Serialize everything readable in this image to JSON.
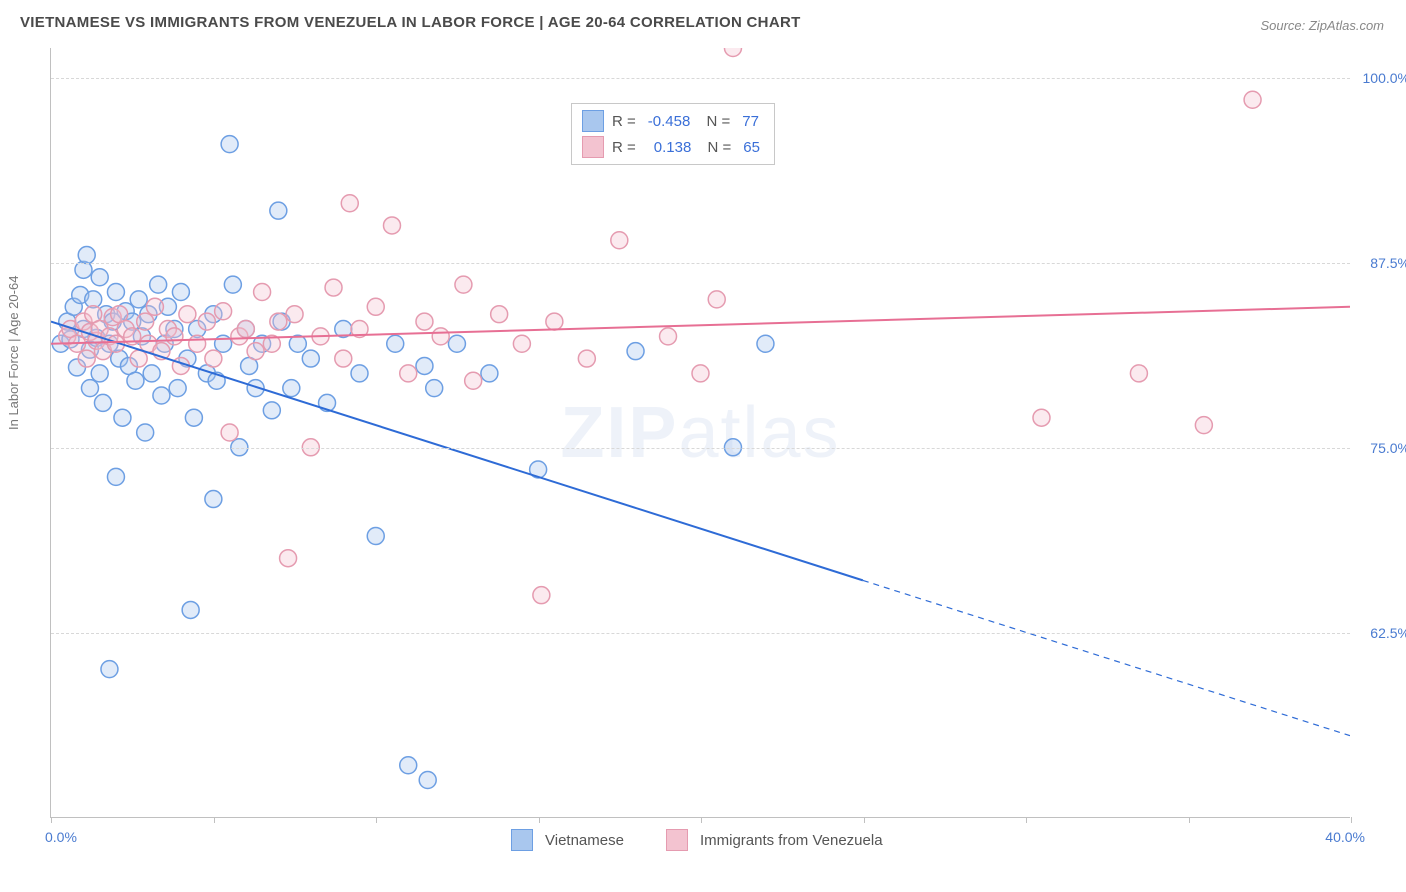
{
  "title": "VIETNAMESE VS IMMIGRANTS FROM VENEZUELA IN LABOR FORCE | AGE 20-64 CORRELATION CHART",
  "source": "Source: ZipAtlas.com",
  "y_label": "In Labor Force | Age 20-64",
  "watermark_bold": "ZIP",
  "watermark_rest": "atlas",
  "chart": {
    "type": "scatter",
    "xlim": [
      0,
      40
    ],
    "ylim": [
      50,
      102
    ],
    "x_ticks": [
      0,
      5,
      10,
      15,
      20,
      25,
      30,
      35,
      40
    ],
    "x_tick_labels": {
      "0": "0.0%",
      "40": "40.0%"
    },
    "y_ticks": [
      62.5,
      75.0,
      87.5,
      100.0
    ],
    "y_tick_labels": [
      "62.5%",
      "75.0%",
      "87.5%",
      "100.0%"
    ],
    "grid_color": "#d8d8d8",
    "background_color": "#ffffff",
    "axis_color": "#c0c0c0",
    "tick_label_color": "#4a7bd0",
    "tick_label_fontsize": 14,
    "marker_radius": 8.5,
    "marker_fill_opacity": 0.35,
    "marker_stroke_width": 1.5,
    "line_width": 2,
    "series": [
      {
        "name": "Vietnamese",
        "color_stroke": "#6d9fe3",
        "color_fill": "#a9c7ee",
        "line_color": "#2e6bd6",
        "R": "-0.458",
        "N": "77",
        "trend": {
          "x1": 0,
          "y1": 83.5,
          "x2": 40,
          "y2": 55.5,
          "solid_until_x": 25
        },
        "points": [
          [
            0.3,
            82.0
          ],
          [
            0.5,
            83.5
          ],
          [
            0.6,
            82.3
          ],
          [
            0.7,
            84.5
          ],
          [
            0.8,
            80.4
          ],
          [
            0.9,
            85.3
          ],
          [
            1.0,
            87.0
          ],
          [
            1.0,
            83.0
          ],
          [
            1.1,
            88.0
          ],
          [
            1.2,
            81.6
          ],
          [
            1.2,
            79.0
          ],
          [
            1.3,
            85.0
          ],
          [
            1.4,
            82.4
          ],
          [
            1.5,
            80.0
          ],
          [
            1.5,
            86.5
          ],
          [
            1.6,
            78.0
          ],
          [
            1.7,
            84.0
          ],
          [
            1.8,
            82.0
          ],
          [
            1.8,
            60.0
          ],
          [
            1.9,
            83.5
          ],
          [
            2.0,
            85.5
          ],
          [
            2.0,
            73.0
          ],
          [
            2.1,
            81.0
          ],
          [
            2.2,
            77.0
          ],
          [
            2.3,
            84.2
          ],
          [
            2.4,
            80.5
          ],
          [
            2.5,
            83.5
          ],
          [
            2.6,
            79.5
          ],
          [
            2.7,
            85.0
          ],
          [
            2.8,
            82.5
          ],
          [
            2.9,
            76.0
          ],
          [
            3.0,
            84.0
          ],
          [
            3.1,
            80.0
          ],
          [
            3.3,
            86.0
          ],
          [
            3.4,
            78.5
          ],
          [
            3.5,
            82.0
          ],
          [
            3.6,
            84.5
          ],
          [
            3.8,
            83.0
          ],
          [
            3.9,
            79.0
          ],
          [
            4.0,
            85.5
          ],
          [
            4.2,
            81.0
          ],
          [
            4.3,
            64.0
          ],
          [
            4.4,
            77.0
          ],
          [
            4.5,
            83.0
          ],
          [
            4.8,
            80.0
          ],
          [
            5.0,
            71.5
          ],
          [
            5.0,
            84.0
          ],
          [
            5.1,
            79.5
          ],
          [
            5.3,
            82.0
          ],
          [
            5.5,
            95.5
          ],
          [
            5.6,
            86.0
          ],
          [
            5.8,
            75.0
          ],
          [
            6.0,
            83.0
          ],
          [
            6.1,
            80.5
          ],
          [
            6.3,
            79.0
          ],
          [
            6.5,
            82.0
          ],
          [
            6.8,
            77.5
          ],
          [
            7.0,
            91.0
          ],
          [
            7.1,
            83.5
          ],
          [
            7.4,
            79.0
          ],
          [
            7.6,
            82.0
          ],
          [
            8.0,
            81.0
          ],
          [
            8.5,
            78.0
          ],
          [
            9.0,
            83.0
          ],
          [
            9.5,
            80.0
          ],
          [
            10.0,
            69.0
          ],
          [
            10.6,
            82.0
          ],
          [
            11.0,
            53.5
          ],
          [
            11.5,
            80.5
          ],
          [
            11.6,
            52.5
          ],
          [
            11.8,
            79.0
          ],
          [
            12.5,
            82.0
          ],
          [
            13.5,
            80.0
          ],
          [
            15.0,
            73.5
          ],
          [
            18.0,
            81.5
          ],
          [
            21.0,
            75.0
          ],
          [
            22.0,
            82.0
          ]
        ]
      },
      {
        "name": "Immigrants from Venezuela",
        "color_stroke": "#e59bb0",
        "color_fill": "#f3c3d0",
        "line_color": "#e76f94",
        "R": "0.138",
        "N": "65",
        "trend": {
          "x1": 0,
          "y1": 82.0,
          "x2": 40,
          "y2": 84.5,
          "solid_until_x": 40
        },
        "points": [
          [
            0.5,
            82.5
          ],
          [
            0.6,
            83.0
          ],
          [
            0.8,
            82.0
          ],
          [
            1.0,
            83.5
          ],
          [
            1.1,
            81.0
          ],
          [
            1.2,
            82.8
          ],
          [
            1.3,
            84.0
          ],
          [
            1.4,
            82.2
          ],
          [
            1.5,
            83.0
          ],
          [
            1.6,
            81.5
          ],
          [
            1.8,
            82.5
          ],
          [
            1.9,
            83.8
          ],
          [
            2.0,
            82.0
          ],
          [
            2.1,
            84.0
          ],
          [
            2.3,
            83.0
          ],
          [
            2.5,
            82.5
          ],
          [
            2.7,
            81.0
          ],
          [
            2.9,
            83.5
          ],
          [
            3.0,
            82.0
          ],
          [
            3.2,
            84.5
          ],
          [
            3.4,
            81.5
          ],
          [
            3.6,
            83.0
          ],
          [
            3.8,
            82.5
          ],
          [
            4.0,
            80.5
          ],
          [
            4.2,
            84.0
          ],
          [
            4.5,
            82.0
          ],
          [
            4.8,
            83.5
          ],
          [
            5.0,
            81.0
          ],
          [
            5.3,
            84.2
          ],
          [
            5.5,
            76.0
          ],
          [
            5.8,
            82.5
          ],
          [
            6.0,
            83.0
          ],
          [
            6.3,
            81.5
          ],
          [
            6.5,
            85.5
          ],
          [
            6.8,
            82.0
          ],
          [
            7.0,
            83.5
          ],
          [
            7.3,
            67.5
          ],
          [
            7.5,
            84.0
          ],
          [
            8.0,
            75.0
          ],
          [
            8.3,
            82.5
          ],
          [
            8.7,
            85.8
          ],
          [
            9.0,
            81.0
          ],
          [
            9.2,
            91.5
          ],
          [
            9.5,
            83.0
          ],
          [
            10.0,
            84.5
          ],
          [
            10.5,
            90.0
          ],
          [
            11.0,
            80.0
          ],
          [
            11.5,
            83.5
          ],
          [
            12.0,
            82.5
          ],
          [
            12.7,
            86.0
          ],
          [
            13.0,
            79.5
          ],
          [
            13.8,
            84.0
          ],
          [
            14.5,
            82.0
          ],
          [
            15.1,
            65.0
          ],
          [
            15.5,
            83.5
          ],
          [
            16.5,
            81.0
          ],
          [
            17.5,
            89.0
          ],
          [
            19.0,
            82.5
          ],
          [
            20.0,
            80.0
          ],
          [
            20.5,
            85.0
          ],
          [
            21.0,
            102.0
          ],
          [
            30.5,
            77.0
          ],
          [
            33.5,
            80.0
          ],
          [
            35.5,
            76.5
          ],
          [
            37.0,
            98.5
          ]
        ]
      }
    ],
    "legend_bottom": [
      {
        "label": "Vietnamese",
        "swatch_fill": "#a9c7ee",
        "swatch_stroke": "#6d9fe3"
      },
      {
        "label": "Immigrants from Venezuela",
        "swatch_fill": "#f3c3d0",
        "swatch_stroke": "#e59bb0"
      }
    ]
  }
}
